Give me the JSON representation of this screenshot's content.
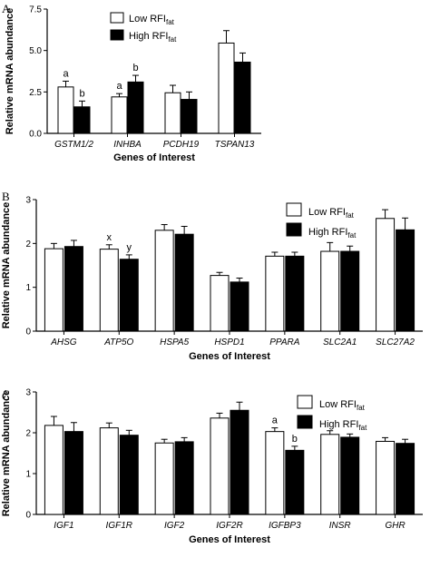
{
  "chart_data": [
    {
      "type": "bar",
      "panel": "A",
      "categories": [
        "GSTM1/2",
        "INHBA",
        "PCDH19",
        "TSPAN13"
      ],
      "series": [
        {
          "name": "Low RFI",
          "name_sub": "fat",
          "fill": "white",
          "values": [
            2.8,
            2.2,
            2.45,
            5.45
          ],
          "errors": [
            0.35,
            0.2,
            0.45,
            0.75
          ]
        },
        {
          "name": "High RFI",
          "name_sub": "fat",
          "fill": "black",
          "values": [
            1.6,
            3.1,
            2.05,
            4.3
          ],
          "errors": [
            0.35,
            0.4,
            0.45,
            0.55
          ]
        }
      ],
      "sig_labels": [
        {
          "category": 0,
          "series": 0,
          "text": "a"
        },
        {
          "category": 0,
          "series": 1,
          "text": "b"
        },
        {
          "category": 1,
          "series": 0,
          "text": "a"
        },
        {
          "category": 1,
          "series": 1,
          "text": "b"
        }
      ],
      "yticks": [
        "0.0",
        "2.5",
        "5.0",
        "7.5"
      ],
      "ylim": [
        0,
        7.5
      ],
      "xlabel": "Genes of Interest",
      "ylabel": "Relative mRNA abundance",
      "legend": "top-center"
    },
    {
      "type": "bar",
      "panel": "B",
      "categories": [
        "AHSG",
        "ATP5O",
        "HSPA5",
        "HSPD1",
        "PPARA",
        "SLC2A1",
        "SLC27A2"
      ],
      "series": [
        {
          "name": "Low RFI",
          "name_sub": "fat",
          "fill": "white",
          "values": [
            1.88,
            1.87,
            2.3,
            1.27,
            1.71,
            1.82,
            2.57
          ],
          "errors": [
            0.12,
            0.1,
            0.13,
            0.07,
            0.09,
            0.2,
            0.2
          ]
        },
        {
          "name": "High RFI",
          "name_sub": "fat",
          "fill": "black",
          "values": [
            1.93,
            1.64,
            2.21,
            1.12,
            1.71,
            1.82,
            2.31
          ],
          "errors": [
            0.14,
            0.1,
            0.18,
            0.09,
            0.09,
            0.12,
            0.27
          ]
        }
      ],
      "sig_labels": [
        {
          "category": 1,
          "series": 0,
          "text": "x"
        },
        {
          "category": 1,
          "series": 1,
          "text": "y"
        }
      ],
      "yticks": [
        "0",
        "1",
        "2",
        "3"
      ],
      "ylim": [
        0,
        3
      ],
      "xlabel": "Genes of Interest",
      "ylabel": "Relative mRNA abundance",
      "legend": "top-right"
    },
    {
      "type": "bar",
      "panel": "C",
      "categories": [
        "IGF1",
        "IGF1R",
        "IGF2",
        "IGF2R",
        "IGFBP3",
        "INSR",
        "GHR"
      ],
      "series": [
        {
          "name": "Low RFI",
          "name_sub": "fat",
          "fill": "white",
          "values": [
            2.18,
            2.12,
            1.75,
            2.36,
            2.03,
            1.96,
            1.79
          ],
          "errors": [
            0.22,
            0.12,
            0.09,
            0.12,
            0.09,
            0.09,
            0.09
          ]
        },
        {
          "name": "High RFI",
          "name_sub": "fat",
          "fill": "black",
          "values": [
            2.03,
            1.94,
            1.78,
            2.55,
            1.57,
            1.89,
            1.74
          ],
          "errors": [
            0.22,
            0.12,
            0.1,
            0.2,
            0.1,
            0.08,
            0.1
          ]
        }
      ],
      "sig_labels": [
        {
          "category": 4,
          "series": 0,
          "text": "a"
        },
        {
          "category": 4,
          "series": 1,
          "text": "b"
        }
      ],
      "yticks": [
        "0",
        "1",
        "2",
        "3"
      ],
      "ylim": [
        0,
        3
      ],
      "xlabel": "Genes of Interest",
      "ylabel": "Relative mRNA abundance",
      "legend": "top-right"
    }
  ]
}
